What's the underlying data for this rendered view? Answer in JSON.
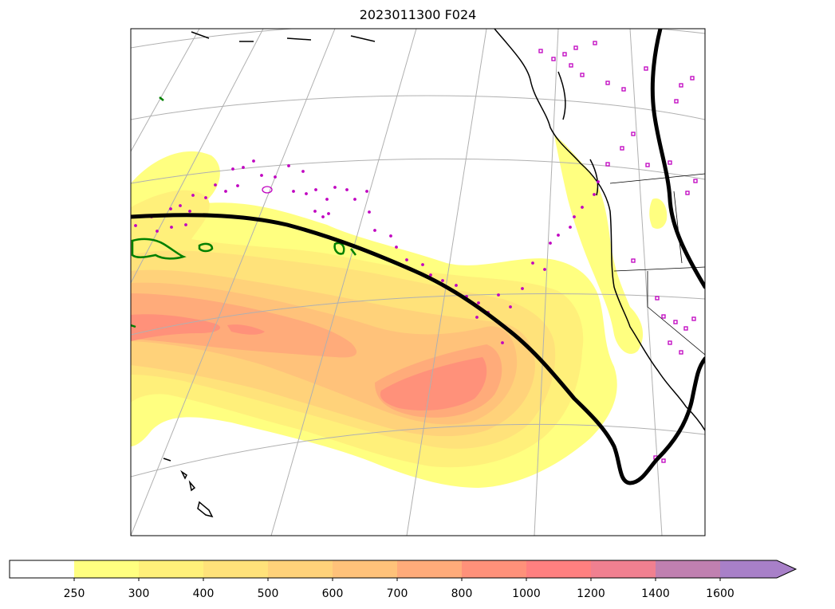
{
  "title": "2023011300 F024",
  "colorbar": {
    "ticks": [
      "250",
      "300",
      "400",
      "500",
      "600",
      "700",
      "800",
      "1000",
      "1200",
      "1400",
      "1600"
    ],
    "bins": [
      {
        "from": null,
        "to": 250,
        "color": "#ffffff"
      },
      {
        "from": 250,
        "to": 300,
        "color": "#ffff80"
      },
      {
        "from": 300,
        "to": 400,
        "color": "#fff07a"
      },
      {
        "from": 400,
        "to": 500,
        "color": "#ffe27a"
      },
      {
        "from": 500,
        "to": 600,
        "color": "#ffd27a"
      },
      {
        "from": 600,
        "to": 700,
        "color": "#ffc27a"
      },
      {
        "from": 700,
        "to": 800,
        "color": "#ffab7a"
      },
      {
        "from": 800,
        "to": 1000,
        "color": "#ff917a"
      },
      {
        "from": 1000,
        "to": 1200,
        "color": "#ff8080"
      },
      {
        "from": 1200,
        "to": 1400,
        "color": "#f08090"
      },
      {
        "from": 1400,
        "to": 1600,
        "color": "#c080b0"
      },
      {
        "from": 1600,
        "to": null,
        "color": "#a880c8"
      }
    ],
    "extend": "max"
  },
  "colors": {
    "frame": "#000000",
    "coastline": "#000000",
    "graticule": "#b0b0b0",
    "contour_line": "#000000",
    "green_markers": "#008000",
    "magenta_markers": "#c000c0"
  }
}
